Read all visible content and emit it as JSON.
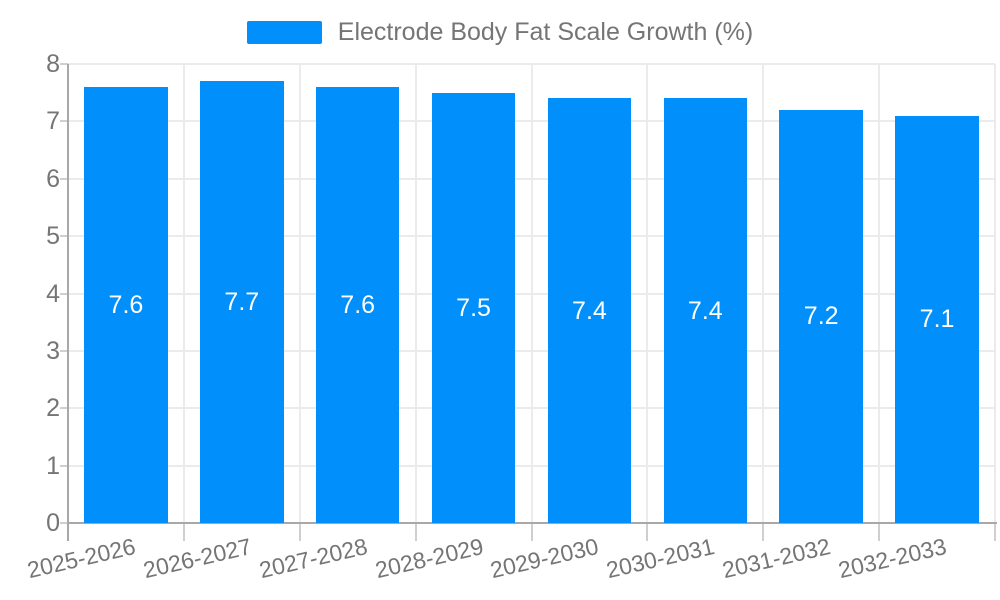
{
  "legend": {
    "label": "Electrode Body Fat Scale Growth (%)"
  },
  "chart_data": {
    "type": "bar",
    "title": "Electrode Body Fat Scale Growth (%)",
    "categories": [
      "2025-2026",
      "2026-2027",
      "2027-2028",
      "2028-2029",
      "2029-2030",
      "2030-2031",
      "2031-2032",
      "2032-2033"
    ],
    "series": [
      {
        "name": "Electrode Body Fat Scale Growth (%)",
        "values": [
          7.6,
          7.7,
          7.6,
          7.5,
          7.4,
          7.4,
          7.2,
          7.1
        ]
      }
    ],
    "data_labels": [
      "7.6",
      "7.7",
      "7.6",
      "7.5",
      "7.4",
      "7.4",
      "7.2",
      "7.1"
    ],
    "xlabel": "",
    "ylabel": "",
    "ylim": [
      0,
      8
    ],
    "yticks": [
      0,
      1,
      2,
      3,
      4,
      5,
      6,
      7,
      8
    ],
    "grid": true,
    "legend_position": "top",
    "colors": {
      "bar": "#008FFB",
      "value_label_text": "#ffffff",
      "axis_text": "#757575",
      "gridline": "#ebebeb",
      "axis_line": "#a8a8a8",
      "tick_mark": "#cfcfcf",
      "background": "#ffffff"
    }
  }
}
